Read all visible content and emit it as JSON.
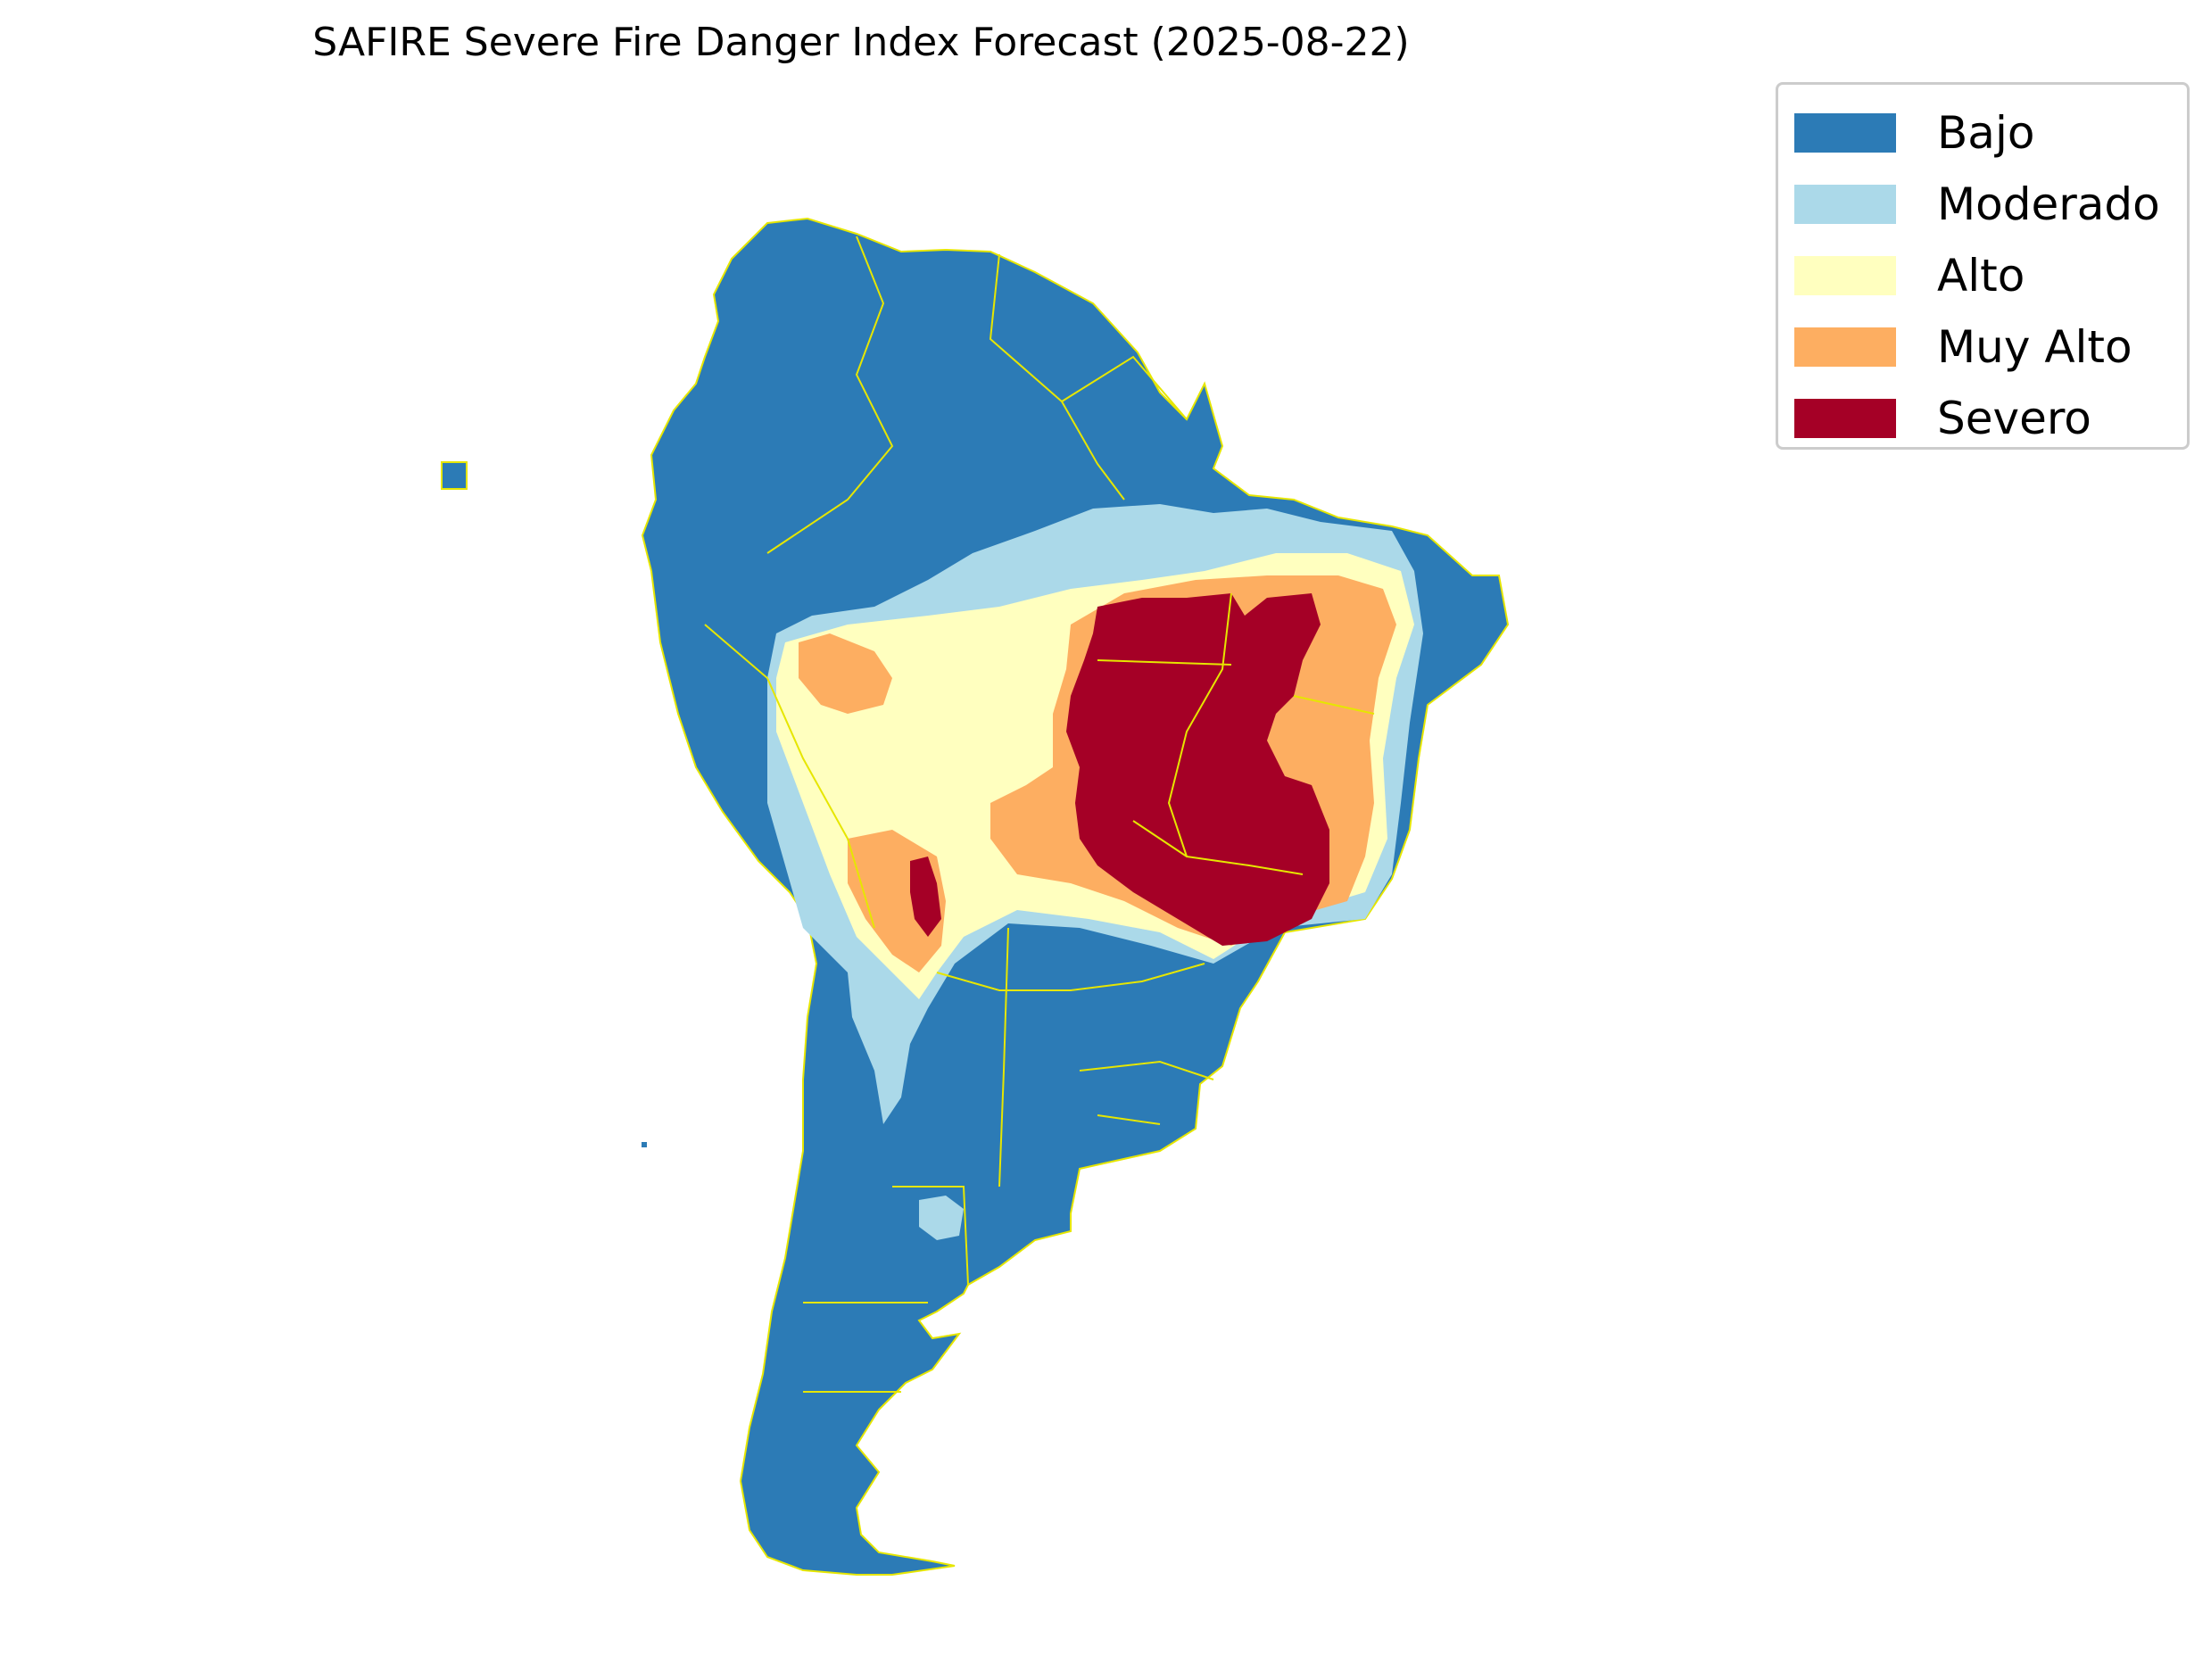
{
  "title": "SAFIRE Severe Fire Danger Index Forecast (2025-08-22)",
  "legend": [
    {
      "label": "Bajo",
      "color": "#2c7bb6"
    },
    {
      "label": "Moderado",
      "color": "#abd9e9"
    },
    {
      "label": "Alto",
      "color": "#ffffbf"
    },
    {
      "label": "Muy Alto",
      "color": "#fdae61"
    },
    {
      "label": "Severo",
      "color": "#a50026"
    }
  ],
  "border_color": "#e6e600",
  "region": "South America"
}
